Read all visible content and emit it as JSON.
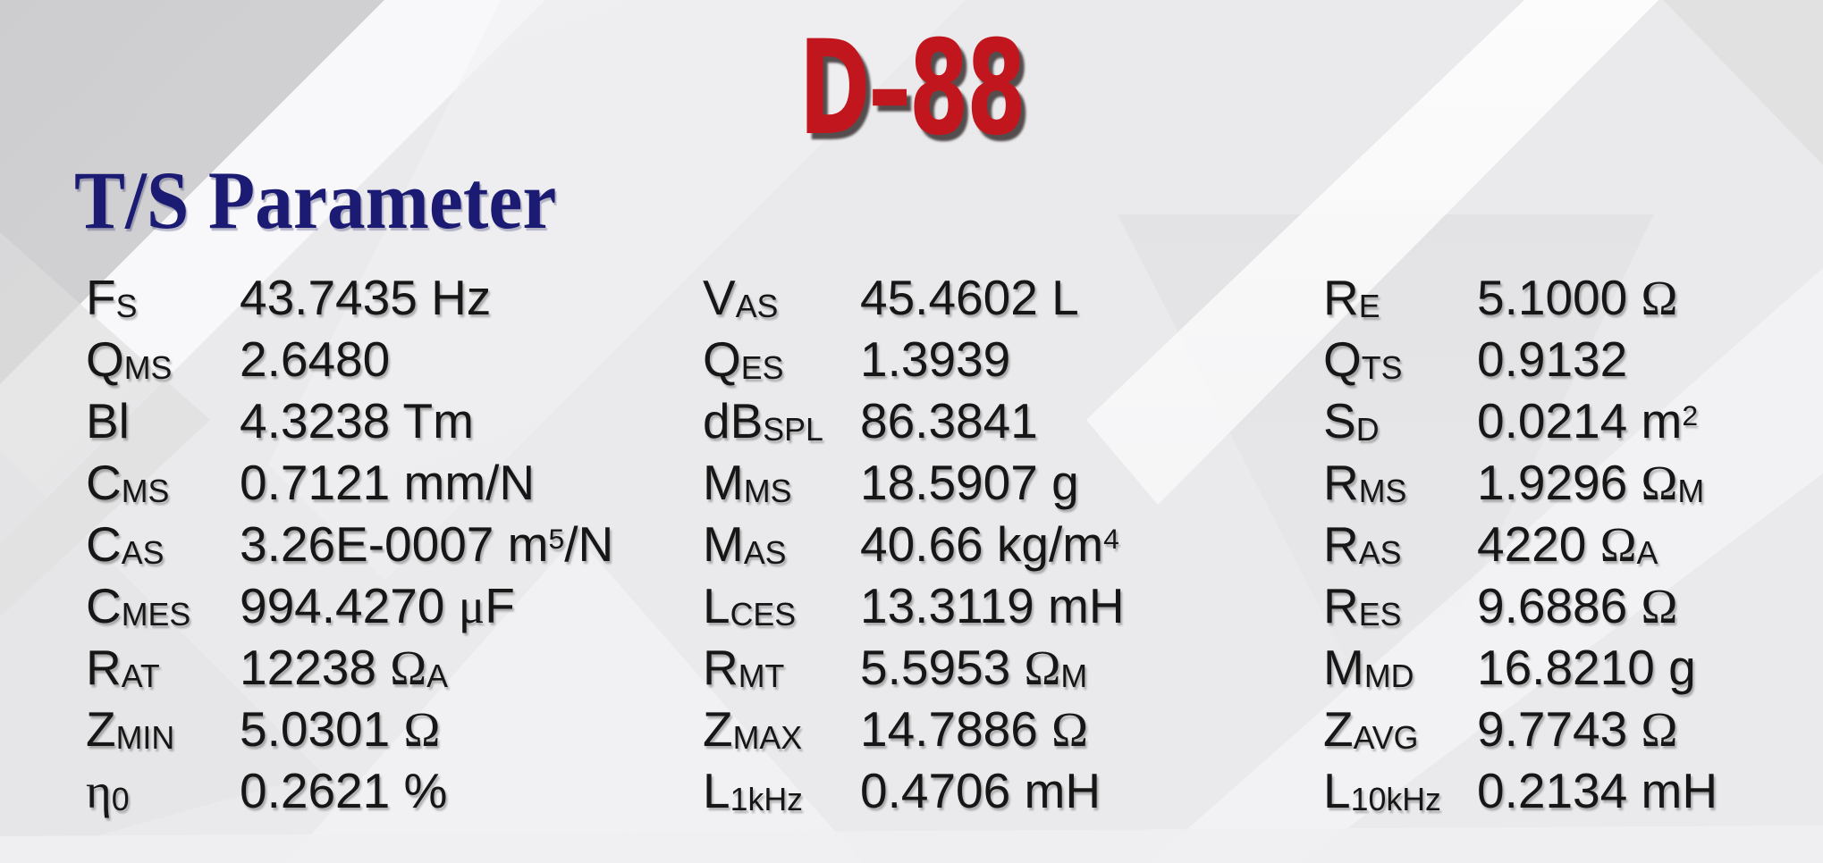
{
  "title": "D–88",
  "heading": "T/S Parameter",
  "colors": {
    "title_red": "#c1161d",
    "heading_navy": "#1b1b73",
    "text": "#161616",
    "background": "#eaeaec"
  },
  "parameters": {
    "columns": [
      {
        "rows": [
          {
            "label": [
              {
                "t": "F"
              },
              {
                "t": "S",
                "s": "sub"
              }
            ],
            "value": [
              {
                "t": "43.7435 Hz"
              }
            ]
          },
          {
            "label": [
              {
                "t": "Q"
              },
              {
                "t": "MS",
                "s": "sub"
              }
            ],
            "value": [
              {
                "t": "2.6480"
              }
            ]
          },
          {
            "label": [
              {
                "t": "Bl"
              }
            ],
            "value": [
              {
                "t": "4.3238 Tm"
              }
            ]
          },
          {
            "label": [
              {
                "t": "C"
              },
              {
                "t": "MS",
                "s": "sub"
              }
            ],
            "value": [
              {
                "t": "0.7121 mm/N"
              }
            ]
          },
          {
            "label": [
              {
                "t": "C"
              },
              {
                "t": "AS",
                "s": "sub"
              }
            ],
            "value": [
              {
                "t": "3.26E-0007 m"
              },
              {
                "t": "5",
                "s": "sup"
              },
              {
                "t": "/N"
              }
            ]
          },
          {
            "label": [
              {
                "t": "C"
              },
              {
                "t": "MES",
                "s": "sub"
              }
            ],
            "value": [
              {
                "t": "994.4270 "
              },
              {
                "t": "μ",
                "s": "greek"
              },
              {
                "t": "F"
              }
            ]
          },
          {
            "label": [
              {
                "t": "R"
              },
              {
                "t": "AT",
                "s": "sub"
              }
            ],
            "value": [
              {
                "t": "12238 "
              },
              {
                "t": "Ω",
                "s": "greek"
              },
              {
                "t": "A",
                "s": "sub"
              }
            ]
          },
          {
            "label": [
              {
                "t": "Z"
              },
              {
                "t": "MIN",
                "s": "sub"
              }
            ],
            "value": [
              {
                "t": "5.0301 "
              },
              {
                "t": "Ω",
                "s": "greek"
              }
            ]
          },
          {
            "label": [
              {
                "t": "η",
                "s": "greek"
              },
              {
                "t": "0",
                "s": "sub"
              }
            ],
            "value": [
              {
                "t": "0.2621 %"
              }
            ]
          }
        ]
      },
      {
        "rows": [
          {
            "label": [
              {
                "t": "V"
              },
              {
                "t": "AS",
                "s": "sub"
              }
            ],
            "value": [
              {
                "t": "45.4602 L"
              }
            ]
          },
          {
            "label": [
              {
                "t": "Q"
              },
              {
                "t": "ES",
                "s": "sub"
              }
            ],
            "value": [
              {
                "t": "1.3939"
              }
            ]
          },
          {
            "label": [
              {
                "t": "dB"
              },
              {
                "t": "SPL",
                "s": "sub"
              }
            ],
            "value": [
              {
                "t": "86.3841"
              }
            ]
          },
          {
            "label": [
              {
                "t": "M"
              },
              {
                "t": "MS",
                "s": "sub"
              }
            ],
            "value": [
              {
                "t": "18.5907 g"
              }
            ]
          },
          {
            "label": [
              {
                "t": "M"
              },
              {
                "t": "AS",
                "s": "sub"
              }
            ],
            "value": [
              {
                "t": "40.66 kg/m"
              },
              {
                "t": "4",
                "s": "sup"
              }
            ]
          },
          {
            "label": [
              {
                "t": "L"
              },
              {
                "t": "CES",
                "s": "sub"
              }
            ],
            "value": [
              {
                "t": "13.3119 mH"
              }
            ]
          },
          {
            "label": [
              {
                "t": "R"
              },
              {
                "t": "MT",
                "s": "sub"
              }
            ],
            "value": [
              {
                "t": "5.5953 "
              },
              {
                "t": "Ω",
                "s": "greek"
              },
              {
                "t": "M",
                "s": "sub"
              }
            ]
          },
          {
            "label": [
              {
                "t": "Z"
              },
              {
                "t": "MAX",
                "s": "sub"
              }
            ],
            "value": [
              {
                "t": "14.7886 "
              },
              {
                "t": "Ω",
                "s": "greek"
              }
            ]
          },
          {
            "label": [
              {
                "t": "L"
              },
              {
                "t": "1kHz",
                "s": "sub"
              }
            ],
            "value": [
              {
                "t": "0.4706 mH"
              }
            ]
          }
        ]
      },
      {
        "rows": [
          {
            "label": [
              {
                "t": "R"
              },
              {
                "t": "E",
                "s": "sub"
              }
            ],
            "value": [
              {
                "t": "5.1000 "
              },
              {
                "t": "Ω",
                "s": "greek"
              }
            ]
          },
          {
            "label": [
              {
                "t": "Q"
              },
              {
                "t": "TS",
                "s": "sub"
              }
            ],
            "value": [
              {
                "t": "0.9132"
              }
            ]
          },
          {
            "label": [
              {
                "t": "S"
              },
              {
                "t": "D",
                "s": "sub"
              }
            ],
            "value": [
              {
                "t": "0.0214 m"
              },
              {
                "t": "2",
                "s": "sup"
              }
            ]
          },
          {
            "label": [
              {
                "t": "R"
              },
              {
                "t": "MS",
                "s": "sub"
              }
            ],
            "value": [
              {
                "t": "1.9296 "
              },
              {
                "t": "Ω",
                "s": "greek"
              },
              {
                "t": "M",
                "s": "sub"
              }
            ]
          },
          {
            "label": [
              {
                "t": "R"
              },
              {
                "t": "AS",
                "s": "sub"
              }
            ],
            "value": [
              {
                "t": "4220 "
              },
              {
                "t": "Ω",
                "s": "greek"
              },
              {
                "t": "A",
                "s": "sub"
              }
            ]
          },
          {
            "label": [
              {
                "t": "R"
              },
              {
                "t": "ES",
                "s": "sub"
              }
            ],
            "value": [
              {
                "t": "9.6886 "
              },
              {
                "t": "Ω",
                "s": "greek"
              }
            ]
          },
          {
            "label": [
              {
                "t": "M"
              },
              {
                "t": "MD",
                "s": "sub"
              }
            ],
            "value": [
              {
                "t": "16.8210 g"
              }
            ]
          },
          {
            "label": [
              {
                "t": "Z"
              },
              {
                "t": "AVG",
                "s": "sub"
              }
            ],
            "value": [
              {
                "t": "9.7743 "
              },
              {
                "t": "Ω",
                "s": "greek"
              }
            ]
          },
          {
            "label": [
              {
                "t": "L"
              },
              {
                "t": "10kHz",
                "s": "sub"
              }
            ],
            "value": [
              {
                "t": "0.2134 mH"
              }
            ]
          }
        ]
      }
    ]
  }
}
